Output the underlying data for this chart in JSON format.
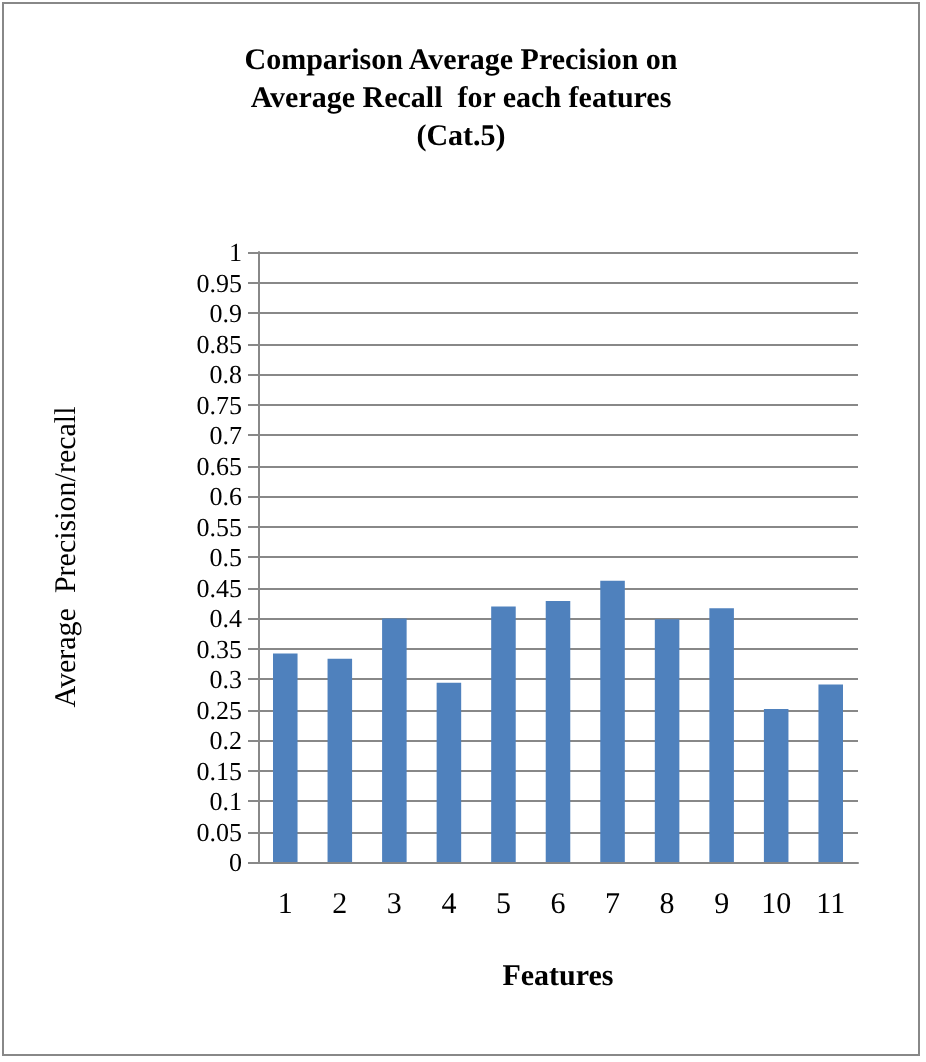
{
  "chart_data": {
    "type": "bar",
    "title": "Comparison Average Precision on\nAverage Recall  for each features\n(Cat.5)",
    "xlabel": "Features",
    "ylabel": "Average  Precision/recall",
    "categories": [
      "1",
      "2",
      "3",
      "4",
      "5",
      "6",
      "7",
      "8",
      "9",
      "10",
      "11"
    ],
    "values": [
      0.342,
      0.333,
      0.399,
      0.294,
      0.419,
      0.428,
      0.461,
      0.398,
      0.416,
      0.251,
      0.291
    ],
    "color": "#4f81bd",
    "ylim": [
      0,
      1
    ],
    "yticks": [
      0,
      0.05,
      0.1,
      0.15,
      0.2,
      0.25,
      0.3,
      0.35,
      0.4,
      0.45,
      0.5,
      0.55,
      0.6,
      0.65,
      0.7,
      0.75,
      0.8,
      0.85,
      0.9,
      0.95,
      1
    ],
    "grid": "y"
  }
}
